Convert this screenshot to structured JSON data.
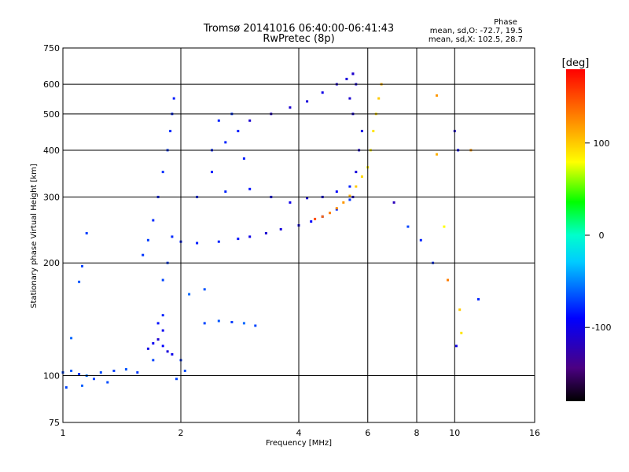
{
  "chart_data": {
    "type": "scatter",
    "title": "Tromsø 20141016 06:40:00-06:41:43",
    "subtitle": "RwPretec (8p)",
    "xlabel": "Frequency [MHz]",
    "ylabel": "Stationary phase Virtual Height [km]",
    "x_scale": "log",
    "y_scale": "log",
    "xlim": [
      1,
      16
    ],
    "ylim": [
      75,
      750
    ],
    "x_ticks": [
      "1",
      "2",
      "4",
      "6",
      "8",
      "10",
      "16"
    ],
    "y_ticks": [
      "75",
      "100",
      "200",
      "300",
      "400",
      "500",
      "600",
      "750"
    ],
    "grid": true,
    "phase_header": "Phase",
    "phase_stats": [
      "mean, sd,O: -72.7, 19.5",
      "mean, sd,X: 102.5, 28.7"
    ],
    "colorbar": {
      "label": "[deg]",
      "ticks": [
        "100",
        "0",
        "-100"
      ],
      "range": [
        -180,
        180
      ]
    },
    "series": [
      {
        "points": [
          [
            1.0,
            102,
            -70
          ],
          [
            1.05,
            103,
            -65
          ],
          [
            1.1,
            101,
            -75
          ],
          [
            1.15,
            100,
            -60
          ],
          [
            1.2,
            98,
            -70
          ],
          [
            1.25,
            102,
            -68
          ],
          [
            1.35,
            103,
            -72
          ],
          [
            1.45,
            104,
            -66
          ],
          [
            1.55,
            102,
            -74
          ],
          [
            1.02,
            93,
            -70
          ],
          [
            1.12,
            94,
            -62
          ],
          [
            1.3,
            96,
            -68
          ],
          [
            1.05,
            126,
            -60
          ],
          [
            1.1,
            178,
            -65
          ],
          [
            1.12,
            196,
            -70
          ],
          [
            1.15,
            240,
            -72
          ]
        ]
      },
      {
        "points": [
          [
            1.65,
            118,
            -100
          ],
          [
            1.7,
            122,
            -95
          ],
          [
            1.75,
            125,
            -110
          ],
          [
            1.8,
            120,
            -90
          ],
          [
            1.85,
            116,
            -105
          ],
          [
            1.9,
            114,
            -98
          ],
          [
            1.75,
            138,
            -85
          ],
          [
            1.8,
            132,
            -95
          ],
          [
            1.7,
            110,
            -70
          ],
          [
            1.8,
            145,
            -80
          ]
        ]
      },
      {
        "points": [
          [
            2.3,
            138,
            -70
          ],
          [
            2.5,
            140,
            -65
          ],
          [
            2.7,
            139,
            -72
          ],
          [
            2.9,
            138,
            -60
          ],
          [
            3.1,
            136,
            -70
          ],
          [
            2.0,
            110,
            -75
          ],
          [
            2.05,
            103,
            -68
          ],
          [
            1.95,
            98,
            -70
          ],
          [
            2.1,
            165,
            -60
          ],
          [
            2.3,
            170,
            -66
          ]
        ]
      },
      {
        "points": [
          [
            1.6,
            210,
            -75
          ],
          [
            1.65,
            230,
            -72
          ],
          [
            1.7,
            260,
            -78
          ],
          [
            1.75,
            300,
            -80
          ],
          [
            1.8,
            350,
            -76
          ],
          [
            1.85,
            400,
            -74
          ],
          [
            1.88,
            450,
            -78
          ],
          [
            1.9,
            500,
            -80
          ],
          [
            1.92,
            550,
            -82
          ],
          [
            1.8,
            180,
            -70
          ],
          [
            1.85,
            200,
            -72
          ]
        ]
      },
      {
        "points": [
          [
            1.9,
            235,
            -78
          ],
          [
            2.0,
            228,
            -80
          ],
          [
            2.2,
            226,
            -82
          ],
          [
            2.5,
            228,
            -80
          ],
          [
            2.8,
            232,
            -85
          ],
          [
            3.0,
            235,
            -100
          ],
          [
            3.3,
            240,
            -110
          ],
          [
            3.6,
            246,
            -105
          ],
          [
            4.0,
            252,
            -100
          ],
          [
            4.3,
            258,
            -90
          ],
          [
            4.6,
            266,
            -85
          ],
          [
            5.0,
            278,
            -80
          ],
          [
            5.4,
            295,
            -75
          ]
        ]
      },
      {
        "points": [
          [
            2.2,
            300,
            -78
          ],
          [
            2.6,
            310,
            -80
          ],
          [
            3.0,
            315,
            -85
          ],
          [
            3.4,
            300,
            -95
          ],
          [
            3.8,
            290,
            -100
          ],
          [
            4.2,
            298,
            -110
          ],
          [
            4.6,
            300,
            -100
          ],
          [
            5.0,
            310,
            -90
          ],
          [
            5.4,
            320,
            -80
          ]
        ]
      },
      {
        "points": [
          [
            3.0,
            480,
            -110
          ],
          [
            3.4,
            500,
            -115
          ],
          [
            3.8,
            520,
            -110
          ],
          [
            4.2,
            540,
            -105
          ],
          [
            4.6,
            570,
            -100
          ],
          [
            5.0,
            600,
            -110
          ],
          [
            5.3,
            620,
            -105
          ],
          [
            5.5,
            640,
            -100
          ]
        ]
      },
      {
        "points": [
          [
            2.4,
            400,
            -78
          ],
          [
            2.6,
            420,
            -80
          ],
          [
            2.8,
            450,
            -82
          ],
          [
            2.5,
            480,
            -80
          ],
          [
            2.7,
            500,
            -76
          ],
          [
            2.4,
            350,
            -80
          ],
          [
            2.9,
            380,
            -82
          ]
        ]
      },
      {
        "points": [
          [
            4.4,
            262,
            150
          ],
          [
            4.6,
            266,
            140
          ],
          [
            4.8,
            272,
            130
          ],
          [
            5.0,
            280,
            125
          ],
          [
            5.2,
            290,
            120
          ],
          [
            5.4,
            302,
            110
          ],
          [
            5.6,
            320,
            100
          ],
          [
            5.8,
            340,
            95
          ],
          [
            6.0,
            360,
            90
          ],
          [
            6.1,
            400,
            85
          ],
          [
            6.2,
            450,
            90
          ],
          [
            6.3,
            500,
            95
          ],
          [
            6.4,
            550,
            100
          ],
          [
            6.5,
            600,
            110
          ]
        ]
      },
      {
        "points": [
          [
            5.5,
            300,
            -110
          ],
          [
            5.6,
            350,
            -105
          ],
          [
            5.7,
            400,
            -110
          ],
          [
            5.8,
            450,
            -100
          ],
          [
            5.5,
            500,
            -105
          ],
          [
            5.4,
            550,
            -110
          ],
          [
            5.6,
            600,
            -108
          ],
          [
            5.5,
            640,
            -112
          ]
        ]
      },
      {
        "points": [
          [
            7.0,
            290,
            -120
          ],
          [
            7.6,
            250,
            -70
          ],
          [
            8.2,
            230,
            -80
          ],
          [
            8.8,
            200,
            -75
          ],
          [
            9.0,
            560,
            120
          ],
          [
            9.0,
            390,
            110
          ],
          [
            9.4,
            250,
            80
          ],
          [
            9.6,
            180,
            130
          ],
          [
            10.0,
            450,
            -110
          ],
          [
            10.2,
            400,
            -90
          ],
          [
            10.3,
            150,
            100
          ],
          [
            10.4,
            130,
            90
          ],
          [
            11.0,
            400,
            120
          ],
          [
            11.5,
            160,
            -80
          ],
          [
            10.1,
            120,
            -100
          ]
        ]
      }
    ]
  }
}
